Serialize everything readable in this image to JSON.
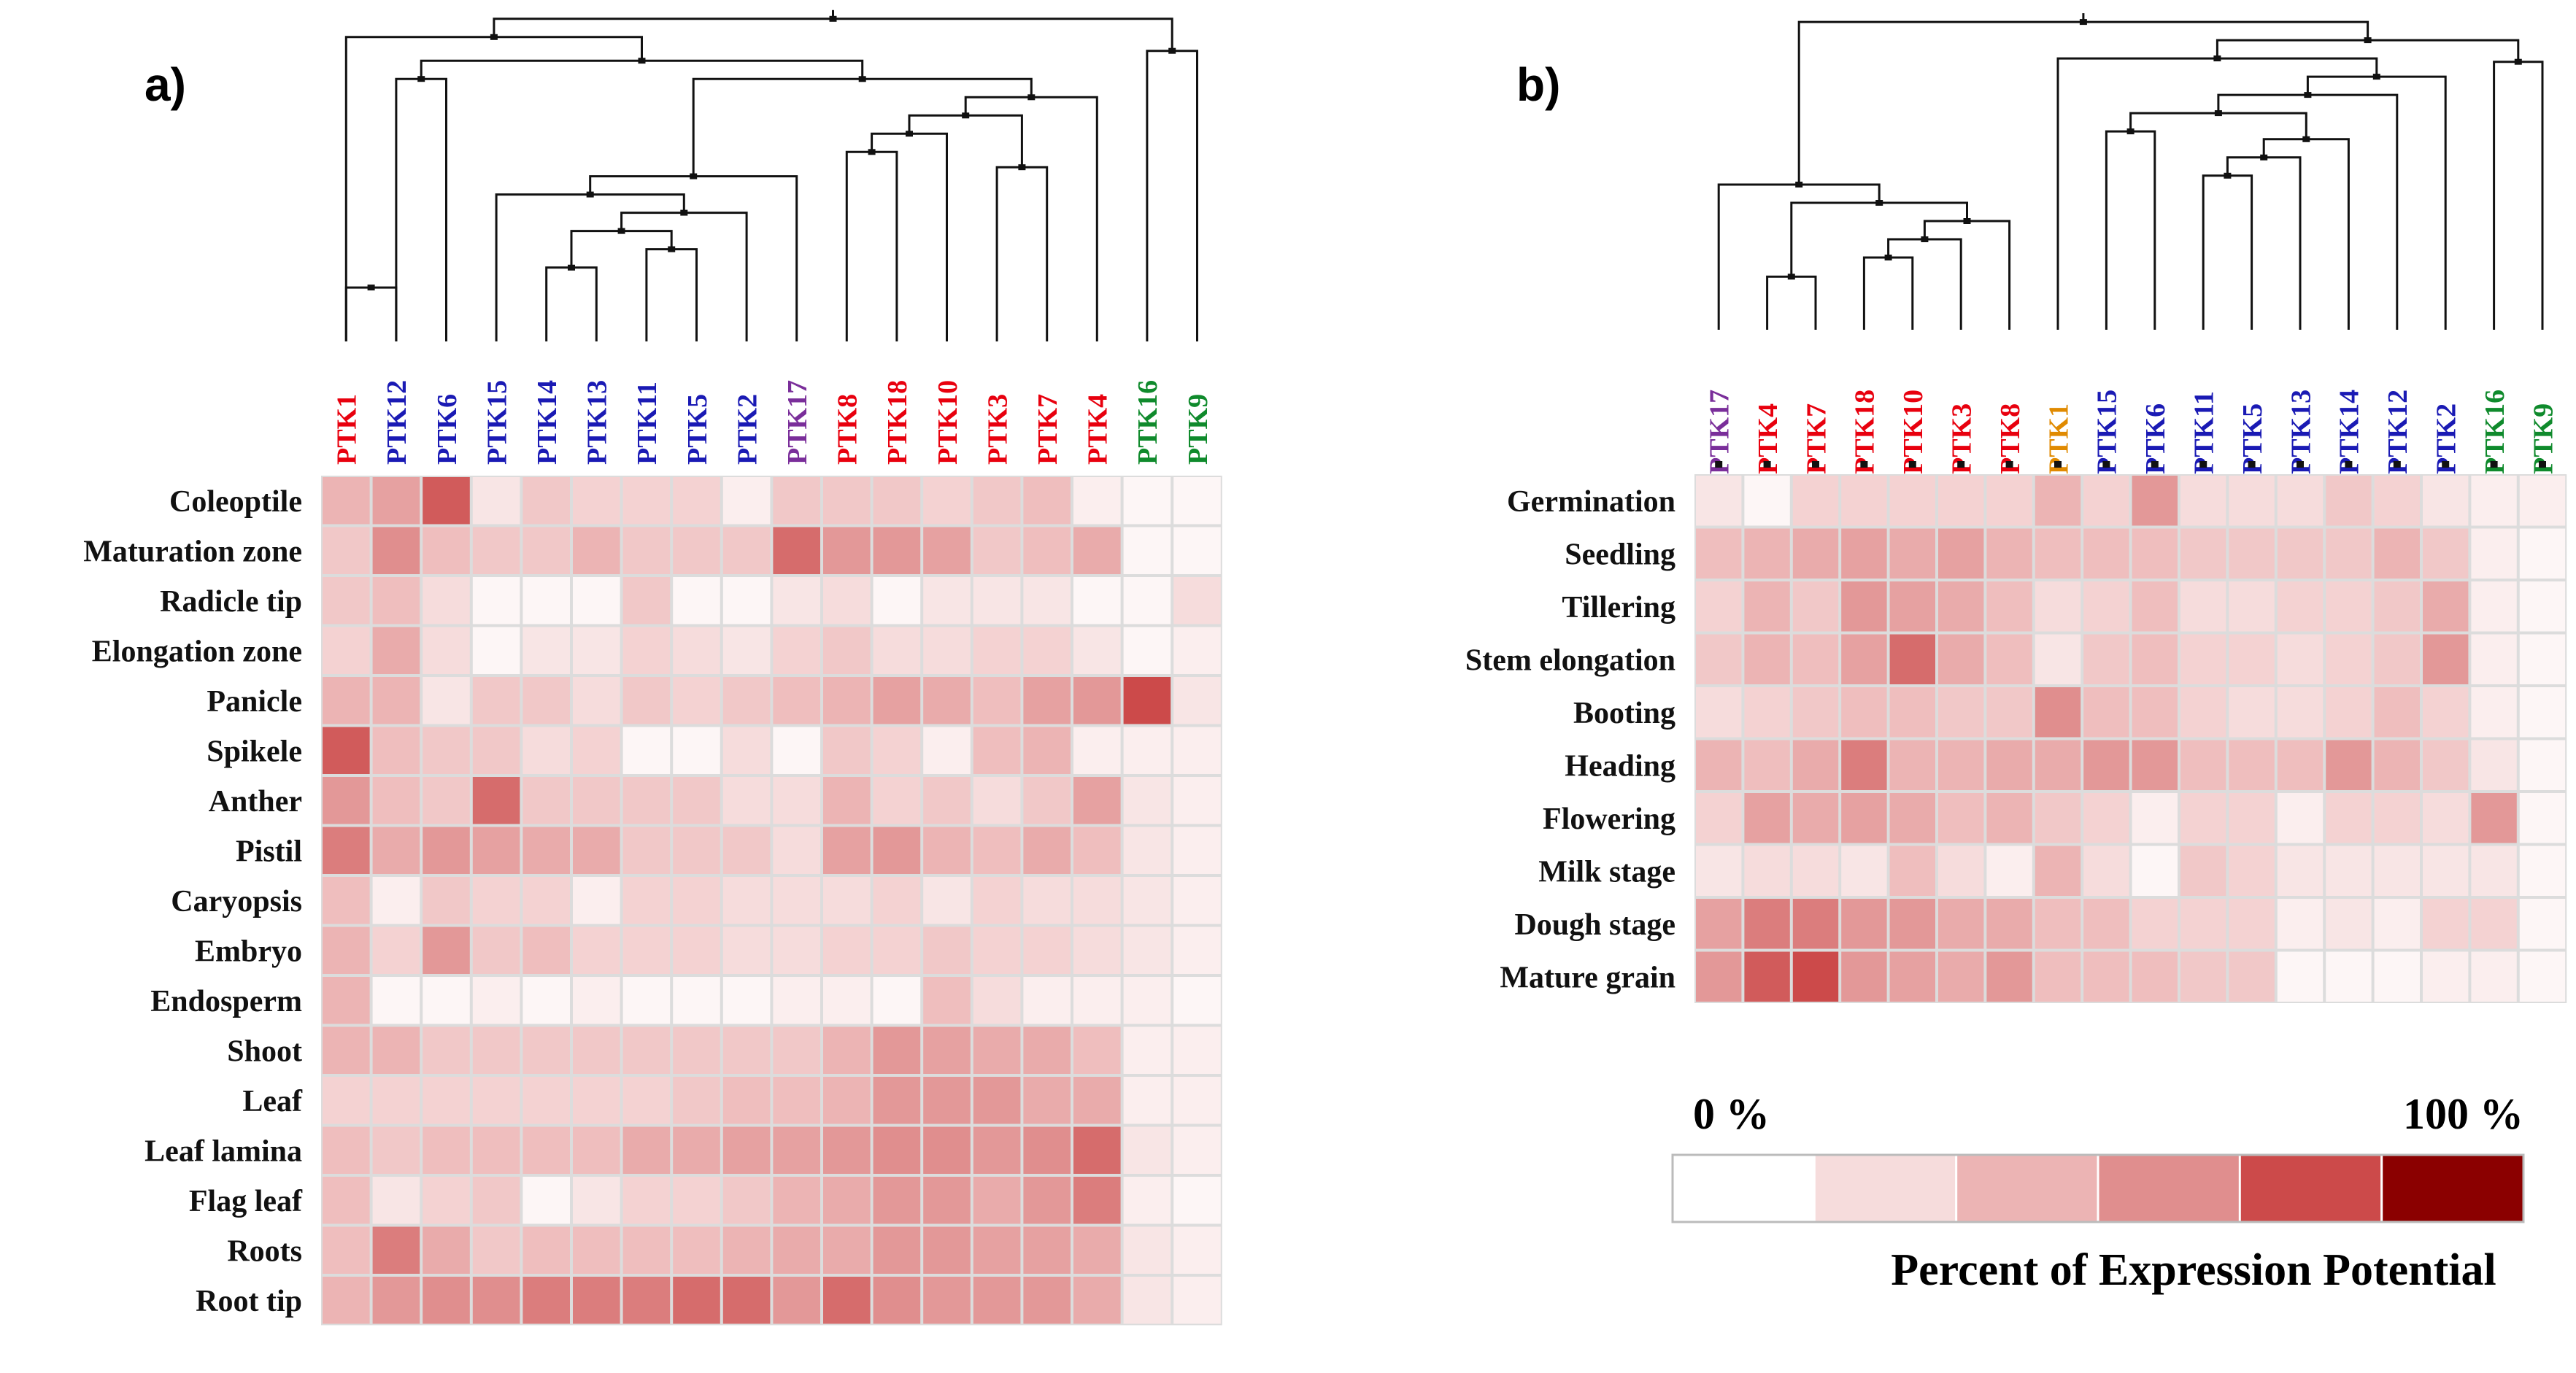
{
  "colors": {
    "red": "#e8000e",
    "blue": "#1a1ab4",
    "purple": "#7a2e9a",
    "green": "#0f8a2c",
    "orange": "#e08a00",
    "scale": [
      "#ffffff",
      "#f6dcdc",
      "#ecb4b4",
      "#e08e8e",
      "#cc4a4a",
      "#8b0000"
    ]
  },
  "legend": {
    "min_label": "0 %",
    "max_label": "100 %",
    "title": "Percent of Expression Potential"
  },
  "chart_data": [
    {
      "type": "heatmap",
      "panel_label": "a)",
      "title": "",
      "columns": [
        "PTK1",
        "PTK12",
        "PTK6",
        "PTK15",
        "PTK14",
        "PTK13",
        "PTK11",
        "PTK5",
        "PTK2",
        "PTK17",
        "PTK8",
        "PTK18",
        "PTK10",
        "PTK3",
        "PTK7",
        "PTK4",
        "PTK16",
        "PTK9"
      ],
      "column_colors": [
        "red",
        "blue",
        "blue",
        "blue",
        "blue",
        "blue",
        "blue",
        "blue",
        "blue",
        "purple",
        "red",
        "red",
        "red",
        "red",
        "red",
        "red",
        "green",
        "green"
      ],
      "rows": [
        "Coleoptile",
        "Maturation zone",
        "Radicle tip",
        "Elongation zone",
        "Panicle",
        "Spikele",
        "Anther",
        "Pistil",
        "Caryopsis",
        "Embryo",
        "Endosperm",
        "Shoot",
        "Leaf",
        "Leaf lamina",
        "Flag leaf",
        "Roots",
        "Root tip"
      ],
      "value_range": [
        0,
        100
      ],
      "values": [
        [
          40,
          50,
          75,
          15,
          30,
          25,
          25,
          25,
          10,
          30,
          30,
          30,
          25,
          30,
          35,
          10,
          5,
          5
        ],
        [
          30,
          60,
          35,
          30,
          30,
          40,
          30,
          30,
          30,
          70,
          55,
          55,
          50,
          30,
          35,
          45,
          5,
          5
        ],
        [
          30,
          35,
          20,
          5,
          5,
          5,
          30,
          5,
          5,
          15,
          20,
          5,
          15,
          15,
          15,
          5,
          5,
          20
        ],
        [
          25,
          45,
          20,
          5,
          15,
          15,
          25,
          20,
          15,
          25,
          30,
          20,
          20,
          25,
          25,
          15,
          5,
          10
        ],
        [
          40,
          40,
          15,
          30,
          30,
          20,
          30,
          25,
          30,
          35,
          40,
          50,
          45,
          35,
          50,
          55,
          80,
          15
        ],
        [
          75,
          35,
          30,
          30,
          20,
          25,
          5,
          5,
          20,
          5,
          30,
          25,
          10,
          35,
          40,
          10,
          10,
          10
        ],
        [
          55,
          35,
          30,
          70,
          30,
          30,
          30,
          30,
          20,
          20,
          40,
          25,
          30,
          20,
          30,
          50,
          15,
          10
        ],
        [
          65,
          45,
          55,
          50,
          45,
          45,
          30,
          30,
          30,
          20,
          50,
          55,
          40,
          35,
          45,
          35,
          15,
          10
        ],
        [
          35,
          10,
          30,
          25,
          25,
          10,
          25,
          25,
          20,
          20,
          20,
          25,
          15,
          25,
          20,
          20,
          15,
          10
        ],
        [
          40,
          25,
          55,
          30,
          35,
          25,
          25,
          25,
          20,
          20,
          25,
          25,
          30,
          25,
          25,
          20,
          15,
          10
        ],
        [
          40,
          5,
          5,
          10,
          5,
          10,
          5,
          5,
          5,
          10,
          10,
          5,
          35,
          20,
          10,
          10,
          10,
          5
        ],
        [
          40,
          40,
          30,
          30,
          30,
          30,
          30,
          30,
          30,
          30,
          40,
          55,
          50,
          45,
          45,
          35,
          10,
          10
        ],
        [
          25,
          25,
          25,
          25,
          25,
          25,
          25,
          30,
          35,
          35,
          40,
          55,
          55,
          55,
          45,
          45,
          10,
          10
        ],
        [
          35,
          30,
          35,
          35,
          35,
          35,
          45,
          45,
          50,
          50,
          55,
          60,
          60,
          55,
          60,
          70,
          15,
          10
        ],
        [
          35,
          15,
          25,
          30,
          5,
          15,
          25,
          25,
          30,
          40,
          45,
          55,
          55,
          45,
          55,
          65,
          10,
          5
        ],
        [
          35,
          65,
          45,
          30,
          35,
          35,
          35,
          35,
          40,
          45,
          45,
          55,
          55,
          50,
          50,
          45,
          15,
          10
        ],
        [
          40,
          55,
          60,
          60,
          65,
          65,
          65,
          70,
          70,
          55,
          70,
          60,
          55,
          55,
          55,
          45,
          15,
          10
        ]
      ],
      "dendrogram": {
        "nodes": [
          [
            "l0",
            "l1"
          ],
          [
            "l4",
            "l5"
          ],
          [
            "l6",
            "l7"
          ],
          [
            "n1",
            "n2"
          ],
          [
            "n3",
            "l8"
          ],
          [
            "n4",
            "l3"
          ],
          [
            "n5",
            "l9"
          ],
          [
            "l13",
            "l14"
          ],
          [
            "l10",
            "l11"
          ],
          [
            "n8",
            "l12"
          ],
          [
            "n9",
            "n7"
          ],
          [
            "n10",
            "l15"
          ],
          [
            "n6",
            "n11"
          ],
          [
            "l1",
            "l2"
          ],
          [
            "n13",
            "n12"
          ],
          [
            "l16",
            "l17"
          ],
          [
            "l0",
            "n14"
          ],
          [
            "n16",
            "n15"
          ]
        ]
      }
    },
    {
      "type": "heatmap",
      "panel_label": "b)",
      "title": "",
      "columns": [
        "PTK17",
        "PTK4",
        "PTK7",
        "PTK18",
        "PTK10",
        "PTK3",
        "PTK8",
        "PTK1",
        "PTK15",
        "PTK6",
        "PTK11",
        "PTK5",
        "PTK13",
        "PTK14",
        "PTK12",
        "PTK2",
        "PTK16",
        "PTK9"
      ],
      "column_colors": [
        "purple",
        "red",
        "red",
        "red",
        "red",
        "red",
        "red",
        "orange",
        "blue",
        "blue",
        "blue",
        "blue",
        "blue",
        "blue",
        "blue",
        "blue",
        "green",
        "green"
      ],
      "rows": [
        "Germination",
        "Seedling",
        "Tillering",
        "Stem elongation",
        "Booting",
        "Heading",
        "Flowering",
        "Milk stage",
        "Dough stage",
        "Mature grain"
      ],
      "value_range": [
        0,
        100
      ],
      "values": [
        [
          15,
          5,
          25,
          25,
          25,
          25,
          25,
          40,
          25,
          55,
          20,
          20,
          20,
          30,
          25,
          15,
          10,
          10
        ],
        [
          35,
          40,
          45,
          50,
          45,
          50,
          40,
          35,
          35,
          35,
          30,
          30,
          30,
          30,
          40,
          30,
          10,
          5
        ],
        [
          25,
          40,
          30,
          55,
          50,
          45,
          35,
          20,
          25,
          35,
          20,
          20,
          25,
          25,
          30,
          45,
          10,
          5
        ],
        [
          30,
          40,
          35,
          50,
          70,
          45,
          35,
          15,
          30,
          35,
          25,
          25,
          20,
          25,
          30,
          55,
          10,
          5
        ],
        [
          20,
          25,
          30,
          35,
          35,
          30,
          30,
          60,
          35,
          35,
          25,
          20,
          20,
          25,
          35,
          25,
          10,
          5
        ],
        [
          40,
          35,
          45,
          65,
          40,
          40,
          45,
          45,
          55,
          55,
          35,
          35,
          35,
          55,
          40,
          30,
          15,
          5
        ],
        [
          25,
          50,
          45,
          50,
          45,
          35,
          40,
          30,
          25,
          10,
          25,
          25,
          10,
          25,
          25,
          20,
          55,
          5
        ],
        [
          15,
          20,
          20,
          15,
          35,
          20,
          10,
          40,
          20,
          5,
          30,
          25,
          15,
          15,
          15,
          15,
          15,
          5
        ],
        [
          50,
          65,
          65,
          55,
          55,
          45,
          45,
          35,
          35,
          25,
          25,
          25,
          10,
          15,
          10,
          25,
          25,
          5
        ],
        [
          55,
          75,
          80,
          55,
          50,
          45,
          55,
          35,
          35,
          35,
          30,
          30,
          5,
          5,
          5,
          10,
          10,
          5
        ]
      ],
      "dendrogram": {
        "nodes": [
          [
            "l1",
            "l2"
          ],
          [
            "l3",
            "l4"
          ],
          [
            "n1",
            "l5"
          ],
          [
            "n2",
            "l6"
          ],
          [
            "n0",
            "n3"
          ],
          [
            "n4",
            "l0"
          ],
          [
            "l10",
            "l11"
          ],
          [
            "n6",
            "l12"
          ],
          [
            "n7",
            "l13"
          ],
          [
            "l8",
            "l9"
          ],
          [
            "n9",
            "n8"
          ],
          [
            "n10",
            "l14"
          ],
          [
            "n11",
            "l15"
          ],
          [
            "l7",
            "n12"
          ],
          [
            "l16",
            "l17"
          ],
          [
            "n13",
            "n14"
          ],
          [
            "n5",
            "n15"
          ]
        ]
      }
    }
  ]
}
